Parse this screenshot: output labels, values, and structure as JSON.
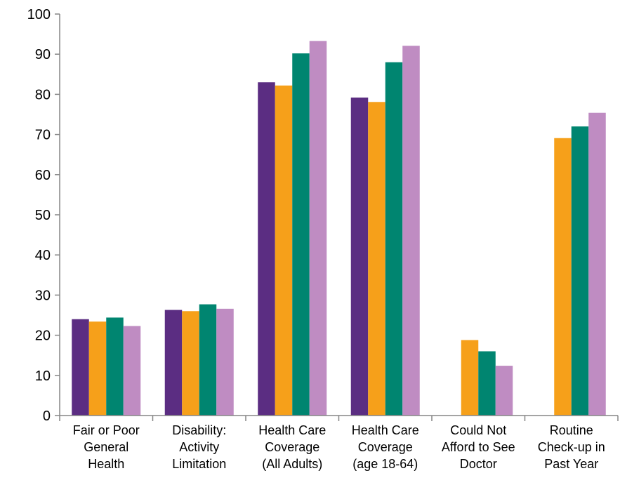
{
  "chart_data": {
    "type": "bar",
    "categories": [
      [
        "Fair or Poor",
        "General",
        "Health"
      ],
      [
        "Disability:",
        "Activity",
        "Limitation"
      ],
      [
        "Health Care",
        "Coverage",
        "(All Adults)"
      ],
      [
        "Health Care",
        "Coverage",
        "(age 18-64)"
      ],
      [
        "Could Not",
        "Afford to See",
        "Doctor"
      ],
      [
        "Routine",
        "Check-up in",
        "Past Year"
      ]
    ],
    "series": [
      {
        "color": "#5b2d82",
        "values": [
          24,
          26.3,
          83,
          79.2,
          null,
          null
        ]
      },
      {
        "color": "#f6a01a",
        "values": [
          23.4,
          26,
          82.2,
          78.1,
          18.8,
          69.1
        ]
      },
      {
        "color": "#008570",
        "values": [
          24.4,
          27.7,
          90.2,
          88,
          16,
          72
        ]
      },
      {
        "color": "#bf8cc2",
        "values": [
          22.3,
          26.6,
          93.3,
          92.1,
          12.4,
          75.4
        ]
      }
    ],
    "yticks": [
      0,
      10,
      20,
      30,
      40,
      50,
      60,
      70,
      80,
      90,
      100
    ],
    "ylim": [
      0,
      100
    ],
    "grid": false,
    "legend": "none",
    "axis_color": "#868686"
  }
}
